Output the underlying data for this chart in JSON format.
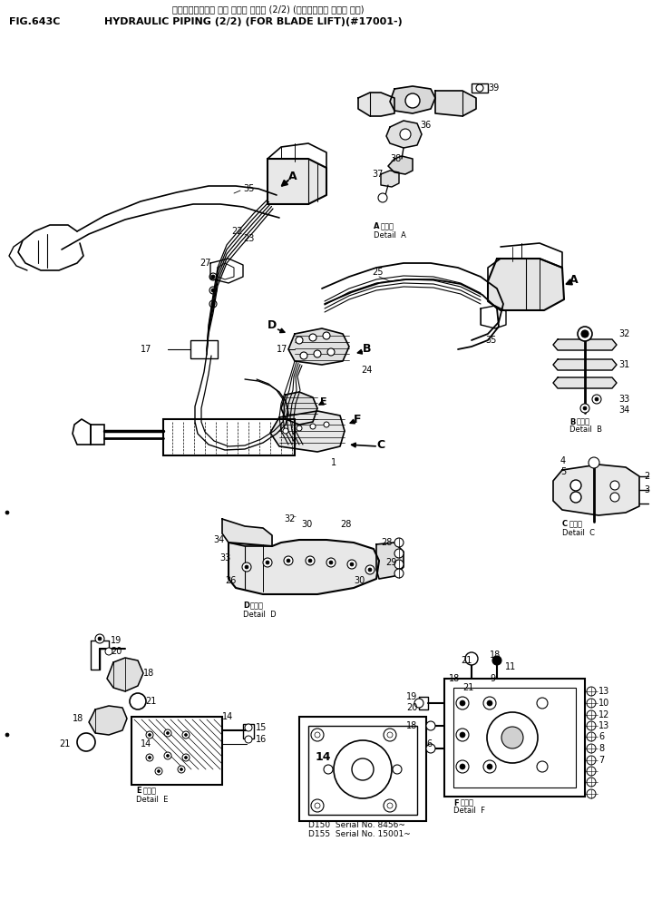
{
  "title_japanese": "ハイト゚ロリック パ イピ ンク゚ (2/2) (プレート゚ リフト ヨリ)",
  "title_english": "HYDRAULIC PIPING (2/2) (FOR BLADE LIFT)(#17001-)",
  "fig_label": "FIG.643C",
  "background_color": "#ffffff",
  "line_color": "#000000",
  "text_color": "#000000",
  "serial_note_1": "D150  Serial No. 8456~",
  "serial_note_2": "D155  Serial No. 15001~",
  "figsize": [
    7.19,
    9.92
  ],
  "dpi": 100
}
